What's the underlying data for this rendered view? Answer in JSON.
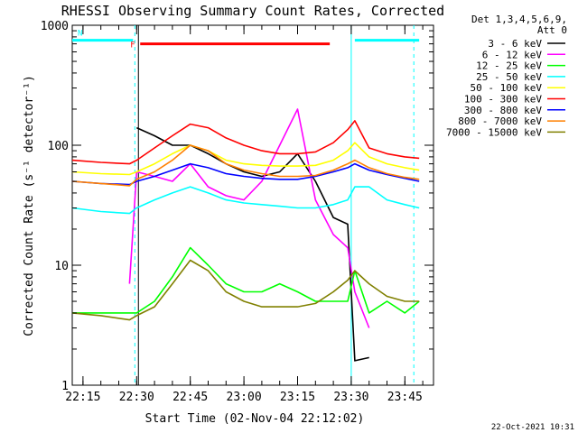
{
  "chart_data": {
    "type": "line",
    "title": "RHESSI Observing Summary Count Rates, Corrected",
    "xlabel": "Start Time (02-Nov-04 22:12:02)",
    "ylabel": "Corrected Count Rate (s⁻¹ detector⁻¹)",
    "y_scale": "log",
    "xlim": [
      "22:12",
      "23:53"
    ],
    "ylim": [
      1,
      1000
    ],
    "x_ticks": [
      "22:15",
      "22:30",
      "22:45",
      "23:00",
      "23:15",
      "23:30",
      "23:45"
    ],
    "y_ticks": [
      "1",
      "10",
      "100",
      "1000"
    ],
    "grid": false,
    "legend_position": "right",
    "legend_header": [
      "Det 1,3,4,5,6,9,",
      "Att 0"
    ],
    "footer_date": "22-Oct-2021 10:31",
    "flags": [
      {
        "label": "F",
        "color": "#ff0000",
        "x_start": "22:31",
        "x_end": "23:24",
        "y": 700
      },
      {
        "label": "N",
        "color": "#00ffff",
        "x_start": "22:12",
        "x_end": "22:29",
        "y": 750
      },
      {
        "label": "",
        "color": "#00ffff",
        "x_start": "23:31",
        "x_end": "23:49",
        "y": 750
      }
    ],
    "markers": [
      {
        "x": "22:29:30",
        "style": "dashed",
        "color": "#00ffff"
      },
      {
        "x": "22:30:30",
        "style": "solid",
        "color": "#000000"
      },
      {
        "x": "23:30:00",
        "style": "solid",
        "color": "#00ffff"
      },
      {
        "x": "23:47:30",
        "style": "dashed",
        "color": "#00ffff"
      }
    ],
    "x": [
      "22:12",
      "22:20",
      "22:28",
      "22:30",
      "22:35",
      "22:40",
      "22:45",
      "22:50",
      "22:55",
      "23:00",
      "23:05",
      "23:10",
      "23:15",
      "23:20",
      "23:25",
      "23:29",
      "23:31",
      "23:35",
      "23:40",
      "23:45",
      "23:49"
    ],
    "series": [
      {
        "name": "3 - 6 keV",
        "color": "#000000",
        "values": [
          null,
          null,
          null,
          140,
          120,
          100,
          100,
          85,
          70,
          60,
          55,
          60,
          85,
          50,
          25,
          22,
          1.6,
          1.7,
          null,
          null,
          null
        ]
      },
      {
        "name": "6 - 12 keV",
        "color": "#ff00ff",
        "values": [
          null,
          null,
          7,
          60,
          55,
          50,
          70,
          45,
          38,
          35,
          50,
          100,
          200,
          35,
          18,
          14,
          6,
          3,
          null,
          null,
          null
        ]
      },
      {
        "name": "12 - 25 keV",
        "color": "#00ff00",
        "values": [
          4,
          4,
          4,
          4,
          5,
          8,
          14,
          10,
          7,
          6,
          6,
          7,
          6,
          5,
          5,
          5,
          9,
          4,
          5,
          4,
          5
        ]
      },
      {
        "name": "25 - 50 keV",
        "color": "#00ffff",
        "values": [
          30,
          28,
          27,
          30,
          35,
          40,
          45,
          40,
          35,
          33,
          32,
          31,
          30,
          30,
          32,
          35,
          45,
          45,
          35,
          32,
          30
        ]
      },
      {
        "name": "50 - 100 keV",
        "color": "#ffff00",
        "values": [
          60,
          58,
          57,
          60,
          70,
          85,
          100,
          90,
          75,
          70,
          68,
          67,
          67,
          68,
          75,
          90,
          105,
          80,
          70,
          65,
          62
        ]
      },
      {
        "name": "100 - 300 keV",
        "color": "#ff0000",
        "values": [
          75,
          72,
          70,
          75,
          95,
          120,
          150,
          140,
          115,
          100,
          90,
          85,
          85,
          88,
          105,
          135,
          160,
          95,
          85,
          80,
          78
        ]
      },
      {
        "name": "300 - 800 keV",
        "color": "#0000ff",
        "values": [
          50,
          48,
          47,
          50,
          55,
          62,
          70,
          65,
          58,
          55,
          53,
          52,
          52,
          55,
          60,
          65,
          70,
          62,
          57,
          53,
          50
        ]
      },
      {
        "name": "800 - 7000 keV",
        "color": "#ff8000",
        "values": [
          50,
          48,
          46,
          52,
          60,
          75,
          100,
          90,
          70,
          62,
          58,
          55,
          55,
          56,
          62,
          70,
          75,
          65,
          58,
          54,
          52
        ]
      },
      {
        "name": "7000 - 15000 keV",
        "color": "#808000",
        "values": [
          4,
          3.8,
          3.5,
          3.8,
          4.5,
          7,
          11,
          9,
          6,
          5,
          4.5,
          4.5,
          4.5,
          4.8,
          6,
          7.5,
          9,
          7,
          5.5,
          5,
          5
        ]
      }
    ]
  }
}
